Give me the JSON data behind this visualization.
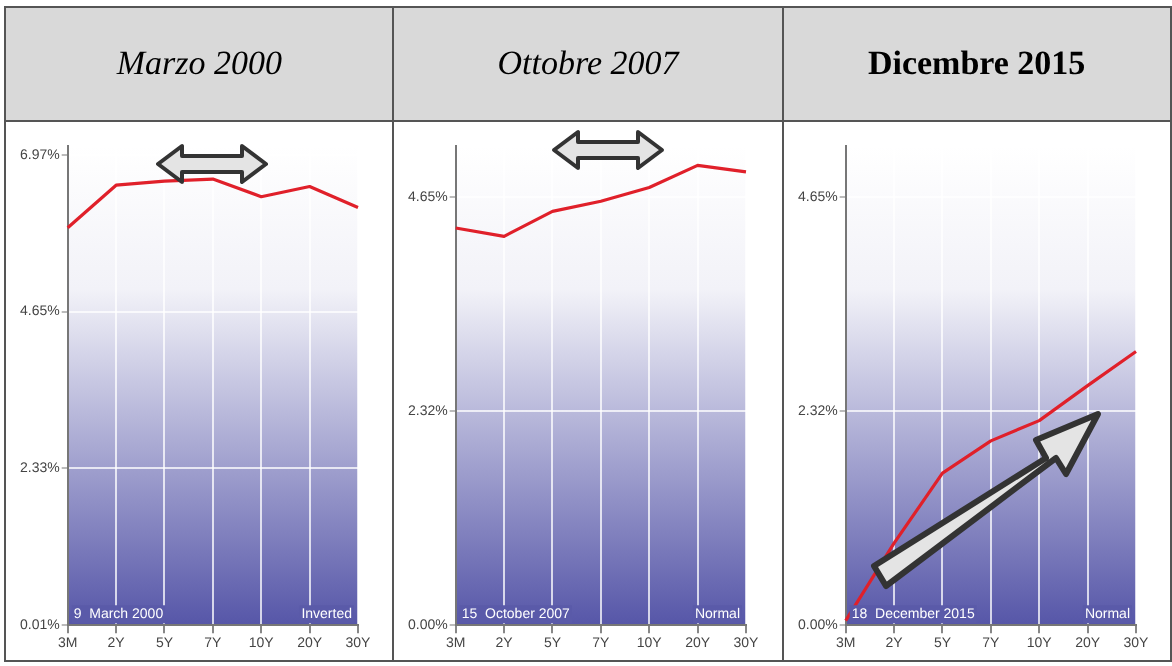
{
  "chart_data": [
    {
      "type": "line",
      "title": "Marzo 2000",
      "categories": [
        "3M",
        "2Y",
        "5Y",
        "7Y",
        "10Y",
        "20Y",
        "30Y"
      ],
      "series": [
        {
          "color": "#e0202a",
          "values": [
            5.89,
            6.52,
            6.58,
            6.61,
            6.35,
            6.5,
            6.19
          ]
        }
      ],
      "ylim": [
        0.01,
        7.1
      ],
      "yticks": [
        {
          "value": 0.01,
          "label": "0.01%"
        },
        {
          "value": 2.33,
          "label": "2.33%"
        },
        {
          "value": 4.65,
          "label": "4.65%"
        },
        {
          "value": 6.97,
          "label": "6.97%"
        }
      ],
      "annotations": [
        "9  March 2000",
        "Inverted"
      ],
      "grid": true,
      "legend": false,
      "marker": "none"
    },
    {
      "type": "line",
      "title": "Ottobre 2007",
      "categories": [
        "3M",
        "2Y",
        "5Y",
        "7Y",
        "10Y",
        "20Y",
        "30Y"
      ],
      "series": [
        {
          "color": "#e0202a",
          "values": [
            4.31,
            4.22,
            4.49,
            4.6,
            4.75,
            4.99,
            4.92
          ]
        }
      ],
      "ylim": [
        0,
        5.2
      ],
      "yticks": [
        {
          "value": 0,
          "label": "0.00%"
        },
        {
          "value": 2.32,
          "label": "2.32%"
        },
        {
          "value": 4.65,
          "label": "4.65%"
        }
      ],
      "annotations": [
        "15  October 2007",
        "Normal"
      ],
      "grid": true,
      "legend": false,
      "marker": "none"
    },
    {
      "type": "line",
      "title": "Dicembre 2015",
      "categories": [
        "3M",
        "2Y",
        "5Y",
        "7Y",
        "10Y",
        "20Y",
        "30Y"
      ],
      "series": [
        {
          "color": "#e0202a",
          "values": [
            0.05,
            0.89,
            1.65,
            2.0,
            2.22,
            2.6,
            2.97
          ]
        }
      ],
      "ylim": [
        0,
        5.2
      ],
      "yticks": [
        {
          "value": 0,
          "label": "0.00%"
        },
        {
          "value": 2.32,
          "label": "2.32%"
        },
        {
          "value": 4.65,
          "label": "4.65%"
        }
      ],
      "annotations": [
        "18  December 2015",
        "Normal"
      ],
      "grid": true,
      "legend": false,
      "marker": "none"
    }
  ]
}
